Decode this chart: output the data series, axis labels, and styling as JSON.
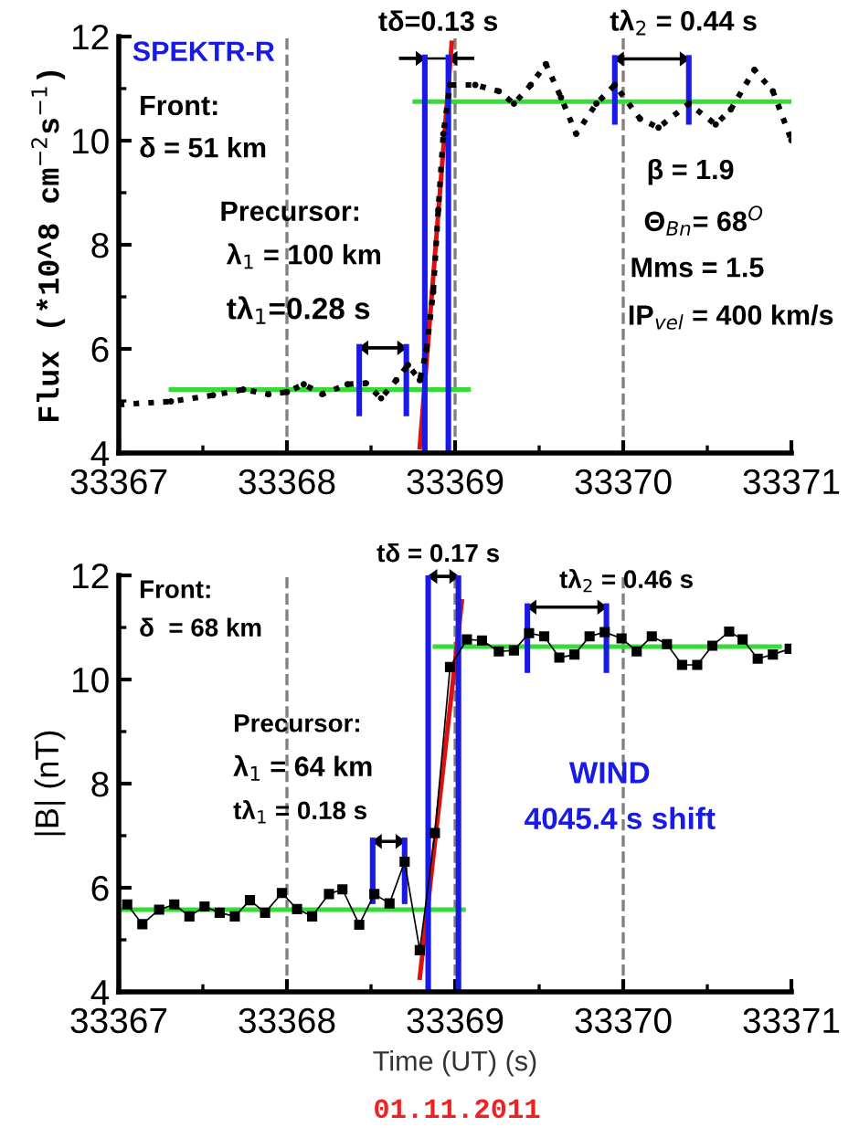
{
  "chart_data": [
    {
      "type": "line",
      "ylabel": "Flux (*10^8 cm$^{−2}$s$^{−1}$)",
      "xlim": [
        33367,
        33371
      ],
      "xticks": [
        33367,
        33368,
        33369,
        33370,
        33371
      ],
      "ylim": [
        4,
        12
      ],
      "yticks": [
        4,
        6,
        8,
        10,
        12
      ],
      "grid": false,
      "annotations": [
        "SPEKTR-R",
        "Front:\nδ = 51 km",
        "Precursor:",
        "λ$_{1}$ = 100 km",
        "tλ$_{1}$=0.28 s",
        "tδ=0.13 s",
        "tλ$_{2}$ = 0.44 s",
        "β = 1.9",
        "Θ$_{Bn}$= 68$^{O}$",
        "Mms = 1.5",
        "IP$_{vel}$ = 400 km/s"
      ],
      "ref_lines": [
        {
          "axis": "x",
          "value": 33368,
          "color": "#808080",
          "line_style": "dashed"
        },
        {
          "axis": "x",
          "value": 33369,
          "color": "#808080",
          "line_style": "dashed"
        },
        {
          "axis": "x",
          "value": 33370,
          "color": "#808080",
          "line_style": "dashed"
        }
      ],
      "series": [
        {
          "color": "#000000",
          "marker": "circle",
          "line_style": "dotted",
          "x": [
            33367.0,
            33367.31,
            33367.56,
            33367.74,
            33367.89,
            33368.0,
            33368.1,
            33368.21,
            33368.36,
            33368.47,
            33368.56,
            33368.65,
            33368.72,
            33368.79,
            33368.83,
            33368.87,
            33368.9,
            33368.93,
            33368.97,
            33369.12,
            33369.26,
            33369.35,
            33369.45,
            33369.54,
            33369.63,
            33369.72,
            33369.84,
            33369.95,
            33370.1,
            33370.21,
            33370.39,
            33370.55,
            33370.64,
            33370.78,
            33370.89,
            33371.0
          ],
          "values": [
            4.93,
            4.99,
            5.11,
            5.22,
            5.13,
            5.17,
            5.32,
            5.13,
            5.32,
            5.34,
            5.05,
            5.4,
            5.69,
            5.4,
            5.98,
            7.09,
            8.67,
            10.13,
            11.07,
            11.07,
            10.95,
            10.71,
            11.07,
            11.47,
            10.83,
            10.13,
            10.71,
            11.07,
            10.42,
            10.25,
            10.71,
            10.31,
            10.6,
            11.36,
            10.95,
            10.01
          ]
        },
        {
          "color": "#33dd33",
          "x": [
            33367.31,
            33369.08
          ],
          "values": [
            5.22,
            5.22
          ]
        },
        {
          "color": "#33dd33",
          "x": [
            33368.76,
            33371.0
          ],
          "values": [
            10.75,
            10.75
          ]
        },
        {
          "color": "#dd1111",
          "x": [
            33368.79,
            33368.98
          ],
          "values": [
            4.11,
            11.88
          ]
        },
        {
          "color": "#1a1ae6",
          "x": [
            33368.82,
            33368.82
          ],
          "values": [
            4,
            11.6
          ]
        },
        {
          "color": "#1a1ae6",
          "x": [
            33368.96,
            33368.96
          ],
          "values": [
            4,
            11.6
          ]
        },
        {
          "color": "#1a1ae6",
          "x": [
            33368.43,
            33368.43
          ],
          "values": [
            4.76,
            6.04
          ]
        },
        {
          "color": "#1a1ae6",
          "x": [
            33368.71,
            33368.71
          ],
          "values": [
            4.76,
            6.04
          ]
        },
        {
          "color": "#1a1ae6",
          "x": [
            33369.95,
            33369.95
          ],
          "values": [
            10.36,
            11.59
          ]
        },
        {
          "color": "#1a1ae6",
          "x": [
            33370.39,
            33370.39
          ],
          "values": [
            10.36,
            11.59
          ]
        }
      ]
    },
    {
      "type": "line",
      "xlabel": "Time (UT) (s)",
      "ylabel": "|B| (nT)",
      "xlim": [
        33367,
        33371
      ],
      "xticks": [
        33367,
        33368,
        33369,
        33370,
        33371
      ],
      "ylim": [
        4,
        12
      ],
      "yticks": [
        4,
        6,
        8,
        10,
        12
      ],
      "grid": false,
      "annotations": [
        "Front:\nδ  = 68 km",
        "tδ = 0.17 s",
        "tλ$_{2}$ = 0.46 s",
        "Precursor:",
        "λ$_{1}$ = 64 km",
        "tλ$_{1}$ = 0.18 s",
        "WIND",
        "4045.4 s shift",
        "01.11.2011"
      ],
      "ref_lines": [
        {
          "axis": "x",
          "value": 33368,
          "color": "#808080",
          "line_style": "dashed"
        },
        {
          "axis": "x",
          "value": 33369,
          "color": "#808080",
          "line_style": "dashed"
        },
        {
          "axis": "x",
          "value": 33370,
          "color": "#808080",
          "line_style": "dashed"
        }
      ],
      "series": [
        {
          "color": "#000000",
          "marker": "square",
          "line_style": "solid",
          "x": [
            33367.05,
            33367.14,
            33367.24,
            33367.33,
            33367.42,
            33367.51,
            33367.6,
            33367.69,
            33367.78,
            33367.87,
            33367.97,
            33368.06,
            33368.15,
            33368.25,
            33368.33,
            33368.43,
            33368.52,
            33368.61,
            33368.7,
            33368.79,
            33368.88,
            33368.97,
            33369.07,
            33369.16,
            33369.26,
            33369.35,
            33369.44,
            33369.53,
            33369.62,
            33369.71,
            33369.8,
            33369.89,
            33369.99,
            33370.08,
            33370.17,
            33370.26,
            33370.35,
            33370.44,
            33370.53,
            33370.63,
            33370.71,
            33370.8,
            33370.89,
            33370.99
          ],
          "values": [
            5.68,
            5.3,
            5.58,
            5.68,
            5.45,
            5.64,
            5.52,
            5.45,
            5.76,
            5.52,
            5.9,
            5.59,
            5.45,
            5.88,
            5.97,
            5.29,
            5.88,
            5.7,
            6.5,
            4.8,
            7.05,
            10.24,
            10.77,
            10.75,
            10.54,
            10.56,
            10.89,
            10.83,
            10.42,
            10.48,
            10.83,
            10.91,
            10.79,
            10.54,
            10.83,
            10.68,
            10.28,
            10.28,
            10.65,
            10.92,
            10.77,
            10.4,
            10.48,
            10.59
          ]
        },
        {
          "color": "#33dd33",
          "x": [
            33367.02,
            33369.05
          ],
          "values": [
            5.58,
            5.58
          ]
        },
        {
          "color": "#33dd33",
          "x": [
            33368.88,
            33370.93
          ],
          "values": [
            10.63,
            10.63
          ]
        },
        {
          "color": "#dd1111",
          "x": [
            33368.79,
            33369.04
          ],
          "values": [
            4.27,
            11.5
          ]
        },
        {
          "color": "#1a1ae6",
          "x": [
            33368.84,
            33368.84
          ],
          "values": [
            4,
            12
          ]
        },
        {
          "color": "#1a1ae6",
          "x": [
            33369.02,
            33369.02
          ],
          "values": [
            4,
            12
          ]
        },
        {
          "color": "#1a1ae6",
          "x": [
            33368.51,
            33368.51
          ],
          "values": [
            5.74,
            6.91
          ]
        },
        {
          "color": "#1a1ae6",
          "x": [
            33368.7,
            33368.7
          ],
          "values": [
            5.74,
            6.91
          ]
        },
        {
          "color": "#1a1ae6",
          "x": [
            33369.43,
            33369.43
          ],
          "values": [
            10.18,
            11.41
          ]
        },
        {
          "color": "#1a1ae6",
          "x": [
            33369.9,
            33369.9
          ],
          "values": [
            10.18,
            11.41
          ]
        }
      ]
    }
  ]
}
